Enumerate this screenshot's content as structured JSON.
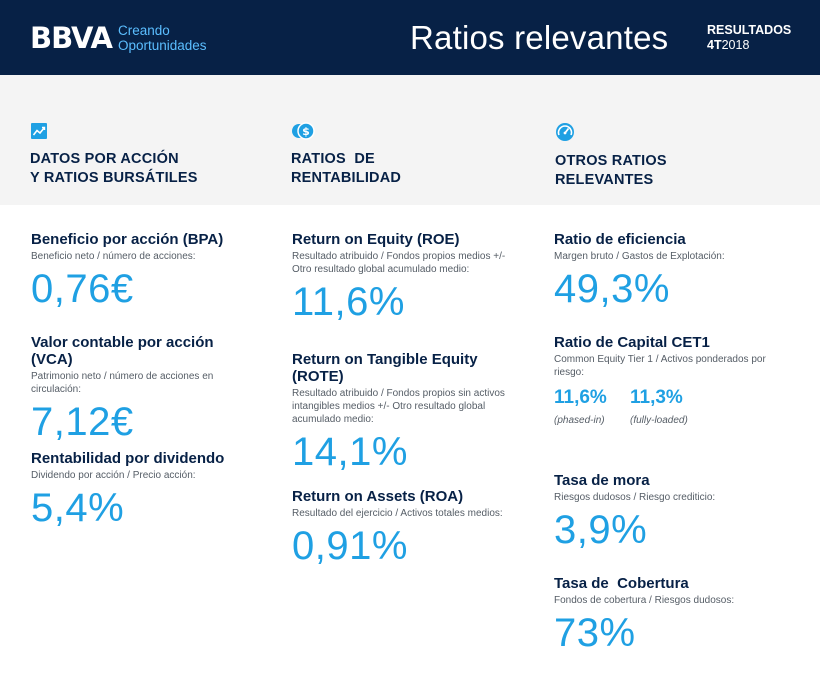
{
  "header": {
    "brand": "BBVA",
    "tagline_1": "Creando",
    "tagline_2": "Oportunidades",
    "title": "Ratios relevantes",
    "results_label": "RESULTADOS",
    "period_quarter": "4T",
    "period_year": "2018"
  },
  "colors": {
    "navy": "#072146",
    "accent": "#1fa0e3",
    "light_band": "#f4f4f4"
  },
  "sections": [
    {
      "icon": "chart-trend-icon",
      "title_line1": "DATOS POR ACCIÓN",
      "title_line2": "Y RATIOS BURSÁTILES"
    },
    {
      "icon": "coins-dollar-icon",
      "title_line1": "RATIOS  DE",
      "title_line2": "RENTABILIDAD"
    },
    {
      "icon": "gauge-icon",
      "title_line1": "OTROS RATIOS",
      "title_line2": "RELEVANTES"
    }
  ],
  "col1": [
    {
      "title": "Beneficio por acción (BPA)",
      "desc": "Beneficio neto / número de acciones:",
      "value": "0,76€"
    },
    {
      "title": "Valor contable por acción (VCA)",
      "desc": "Patrimonio neto / número de acciones en circulación:",
      "value": "7,12€"
    },
    {
      "title": "Rentabilidad por dividendo",
      "desc": "Dividendo por acción / Precio acción:",
      "value": "5,4%"
    }
  ],
  "col2": [
    {
      "title": "Return on Equity (ROE)",
      "desc": "Resultado atribuido / Fondos propios medios +/- Otro resultado global acumulado medio:",
      "value": "11,6%"
    },
    {
      "title": "Return on Tangible Equity (ROTE)",
      "desc": "Resultado atribuido / Fondos propios sin activos intangibles medios +/- Otro resultado global acumulado medio:",
      "value": "14,1%"
    },
    {
      "title": "Return on Assets (ROA)",
      "desc": "Resultado del ejercicio / Activos totales medios:",
      "value": "0,91%"
    }
  ],
  "col3": {
    "efficiency": {
      "title": "Ratio de eficiencia",
      "desc": "Margen bruto / Gastos de Explotación:",
      "value": "49,3%"
    },
    "cet1": {
      "title": "Ratio de Capital CET1",
      "desc": "Common Equity Tier 1 / Activos ponderados por riesgo:",
      "phased_in_value": "11,6%",
      "phased_in_label": "(phased-in)",
      "fully_loaded_value": "11,3%",
      "fully_loaded_label": "(fully-loaded)"
    },
    "npl": {
      "title": "Tasa de mora",
      "desc": "Riesgos dudosos / Riesgo crediticio:",
      "value": "3,9%"
    },
    "coverage": {
      "title": "Tasa de  Cobertura",
      "desc": "Fondos de cobertura / Riesgos dudosos:",
      "value": "73%"
    }
  }
}
